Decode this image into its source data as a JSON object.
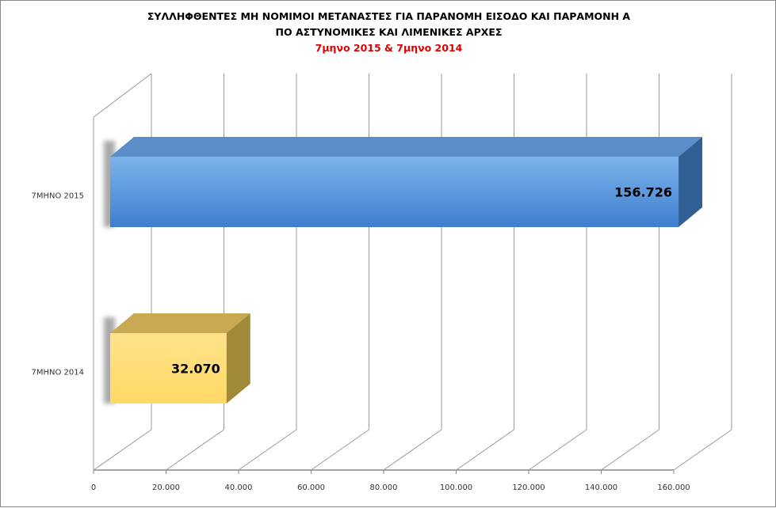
{
  "chart_data": {
    "type": "bar",
    "orientation": "horizontal",
    "style": "3d",
    "title": "ΣΥΛΛΗΦΘΕΝΤΕΣ ΜΗ ΝΟΜΙΜΟΙ ΜΕΤΑΝΑΣΤΕΣ ΓΙΑ ΠΑΡΑΝΟΜΗ ΕΙΣΟΔΟ ΚΑΙ ΠΑΡΑΜΟΝΗ Α",
    "title_line2": "ΠΟ ΑΣΤΥΝΟΜΙΚΕΣ ΚΑΙ ΛΙΜΕΝΙΚΕΣ ΑΡΧΕΣ",
    "subtitle": "7μηνο 2015 & 7μηνο 2014",
    "subtitle_color": "#e00000",
    "categories": [
      "7ΜΗΝΟ 2015",
      "7ΜΗΝΟ 2014"
    ],
    "values": [
      156726,
      32070
    ],
    "value_labels": [
      "156.726",
      "32.070"
    ],
    "bar_colors": [
      "#4a90d9",
      "#ffd966"
    ],
    "xlim": [
      0,
      160000
    ],
    "x_ticks": [
      "0",
      "20.000",
      "40.000",
      "60.000",
      "80.000",
      "100.000",
      "120.000",
      "140.000",
      "160.000"
    ],
    "grid": true
  }
}
